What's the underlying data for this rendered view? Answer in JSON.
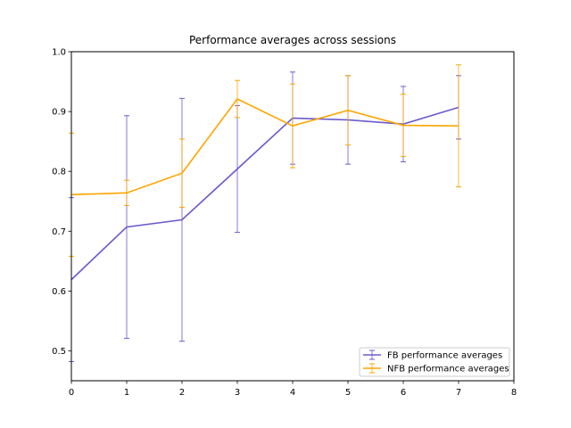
{
  "chart_data": {
    "type": "line",
    "title": "Performance averages across sessions",
    "xlabel": "",
    "ylabel": "",
    "xlim": [
      0,
      8
    ],
    "ylim": [
      0.45,
      1.0
    ],
    "xticks": [
      0,
      1,
      2,
      3,
      4,
      5,
      6,
      7,
      8
    ],
    "yticks": [
      0.5,
      0.6,
      0.7,
      0.8,
      0.9,
      1.0
    ],
    "xtick_labels": [
      "0",
      "1",
      "2",
      "3",
      "4",
      "5",
      "6",
      "7",
      "8"
    ],
    "ytick_labels": [
      "0.5",
      "0.6",
      "0.7",
      "0.8",
      "0.9",
      "1.0"
    ],
    "grid": false,
    "legend_position": "lower-right",
    "x": [
      0,
      1,
      2,
      3,
      4,
      5,
      6,
      7
    ],
    "series": [
      {
        "name": "FB performance averages",
        "color": "#6a5acd",
        "values": [
          0.619,
          0.707,
          0.719,
          0.804,
          0.889,
          0.886,
          0.879,
          0.907
        ],
        "errors": [
          0.137,
          0.186,
          0.203,
          0.106,
          0.077,
          0.074,
          0.063,
          0.053
        ]
      },
      {
        "name": "NFB performance averages",
        "color": "#ffa500",
        "values": [
          0.761,
          0.764,
          0.797,
          0.921,
          0.876,
          0.902,
          0.877,
          0.876
        ],
        "errors": [
          0.103,
          0.021,
          0.057,
          0.031,
          0.07,
          0.058,
          0.052,
          0.102
        ]
      }
    ]
  }
}
